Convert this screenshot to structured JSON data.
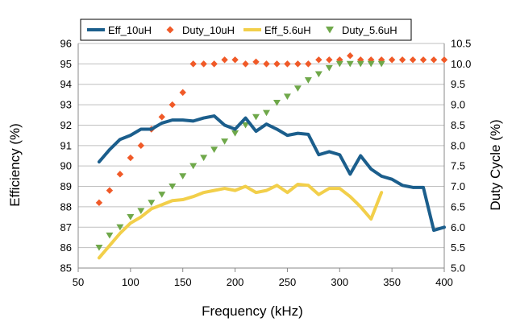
{
  "colors": {
    "eff_10uH": "#1B5E8C",
    "duty_10uH": "#F05A28",
    "eff_5_6uH": "#F2CF4A",
    "duty_5_6uH": "#6FA84A",
    "grid": "#BFBFBF"
  },
  "chart_data": {
    "type": "line",
    "xlabel": "Frequency (kHz)",
    "ylabel": "Efficiency (%)",
    "y2label": "Duty Cycle (%)",
    "xlim": [
      50,
      400
    ],
    "ylim": [
      85,
      96
    ],
    "y2lim": [
      5.0,
      10.5
    ],
    "x_ticks": [
      50,
      100,
      150,
      200,
      250,
      300,
      350,
      400
    ],
    "y_ticks": [
      85,
      86,
      87,
      88,
      89,
      90,
      91,
      92,
      93,
      94,
      95,
      96
    ],
    "y2_ticks": [
      "5.0",
      "5.5",
      "6.0",
      "6.5",
      "7.0",
      "7.5",
      "8.0",
      "8.5",
      "9.0",
      "9.5",
      "10.0",
      "10.5"
    ],
    "grid": "horizontal",
    "legend_position": "top",
    "series": [
      {
        "name": "Eff_10uH",
        "style": "line",
        "axis": "left",
        "x": [
          70,
          80,
          90,
          100,
          110,
          120,
          130,
          140,
          150,
          160,
          170,
          180,
          190,
          200,
          210,
          220,
          230,
          240,
          250,
          260,
          270,
          280,
          290,
          300,
          310,
          320,
          330,
          340,
          350,
          360,
          370,
          380,
          390,
          400
        ],
        "y": [
          90.2,
          90.8,
          91.3,
          91.5,
          91.8,
          91.8,
          92.1,
          92.25,
          92.25,
          92.2,
          92.35,
          92.45,
          92.0,
          91.8,
          92.35,
          91.7,
          92.05,
          91.8,
          91.5,
          91.6,
          91.55,
          90.55,
          90.7,
          90.55,
          89.6,
          90.5,
          89.85,
          89.5,
          89.35,
          89.05,
          88.95,
          88.95,
          86.85,
          87.0
        ]
      },
      {
        "name": "Duty_10uH",
        "style": "diamond",
        "axis": "right",
        "x": [
          70,
          80,
          90,
          100,
          110,
          120,
          130,
          140,
          150,
          160,
          170,
          180,
          190,
          200,
          210,
          220,
          230,
          240,
          250,
          260,
          270,
          280,
          290,
          300,
          310,
          320,
          330,
          340,
          350,
          360,
          370,
          380,
          390,
          400
        ],
        "y": [
          6.6,
          6.9,
          7.3,
          7.7,
          8.0,
          8.4,
          8.7,
          9.0,
          9.3,
          10.0,
          10.0,
          10.0,
          10.1,
          10.1,
          10.0,
          10.05,
          10.0,
          10.0,
          10.0,
          10.0,
          10.0,
          10.1,
          10.1,
          10.1,
          10.2,
          10.1,
          10.1,
          10.1,
          10.1,
          10.1,
          10.1,
          10.1,
          10.1,
          10.1
        ]
      },
      {
        "name": "Eff_5.6uH",
        "style": "line",
        "axis": "left",
        "x": [
          70,
          80,
          90,
          100,
          110,
          120,
          130,
          140,
          150,
          160,
          170,
          180,
          190,
          200,
          210,
          220,
          230,
          240,
          250,
          260,
          270,
          280,
          290,
          300,
          310,
          320,
          330,
          340
        ],
        "y": [
          85.5,
          86.1,
          86.7,
          87.2,
          87.5,
          87.9,
          88.1,
          88.3,
          88.35,
          88.5,
          88.7,
          88.8,
          88.9,
          88.8,
          89.0,
          88.7,
          88.8,
          89.05,
          88.7,
          89.1,
          89.05,
          88.6,
          88.9,
          88.9,
          88.5,
          88.0,
          87.4,
          88.7
        ]
      },
      {
        "name": "Duty_5.6uH",
        "style": "triangle",
        "axis": "right",
        "x": [
          70,
          80,
          90,
          100,
          110,
          120,
          130,
          140,
          150,
          160,
          170,
          180,
          190,
          200,
          210,
          220,
          230,
          240,
          250,
          260,
          270,
          280,
          290,
          300,
          310,
          320,
          330,
          340
        ],
        "y": [
          5.5,
          5.8,
          6.0,
          6.25,
          6.4,
          6.6,
          6.8,
          7.0,
          7.25,
          7.5,
          7.7,
          7.9,
          8.1,
          8.3,
          8.5,
          8.7,
          8.8,
          9.05,
          9.2,
          9.4,
          9.6,
          9.75,
          9.9,
          10.0,
          10.0,
          10.0,
          10.0,
          10.0
        ]
      }
    ]
  }
}
